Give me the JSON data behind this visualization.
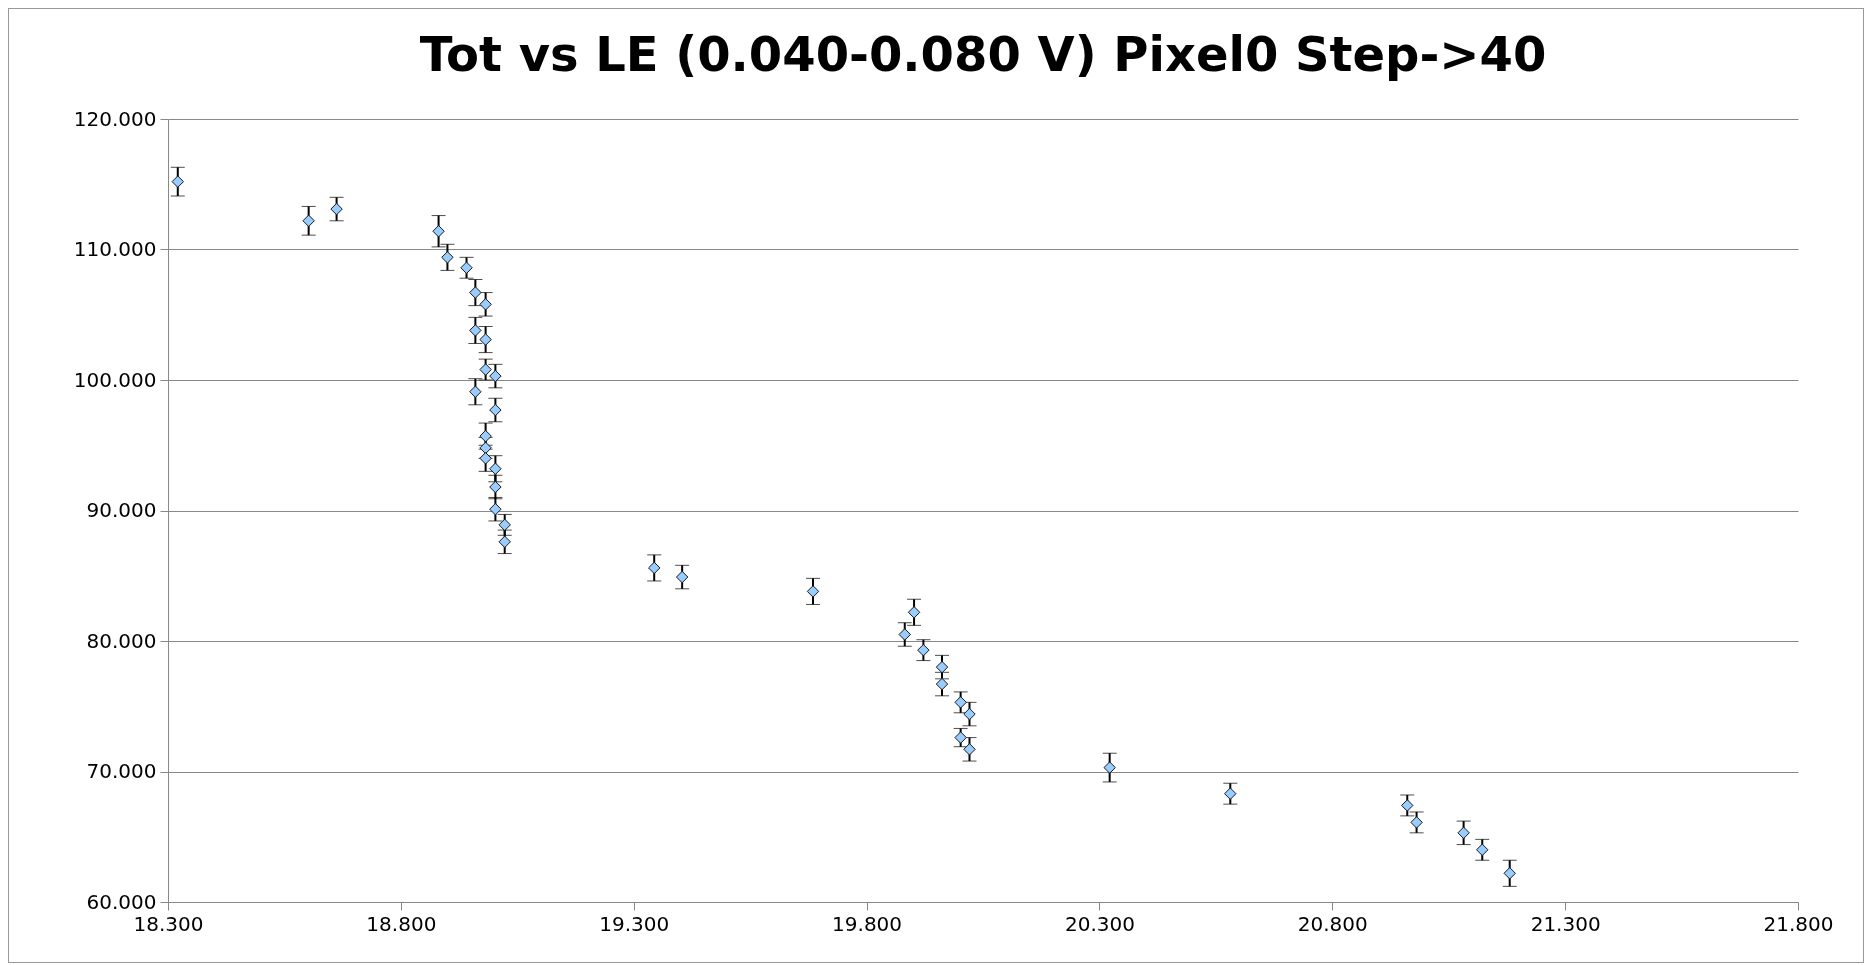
{
  "chart_data": {
    "type": "scatter",
    "title": "Tot vs LE (0.040-0.080 V) Pixel0 Step->40",
    "x": [
      18.321,
      18.602,
      18.662,
      18.881,
      18.9,
      18.941,
      18.96,
      18.96,
      18.96,
      18.982,
      18.982,
      18.982,
      18.982,
      18.982,
      18.982,
      19.003,
      19.003,
      19.003,
      19.003,
      19.003,
      19.023,
      19.023,
      19.344,
      19.404,
      19.685,
      19.882,
      19.902,
      19.922,
      19.962,
      19.962,
      20.002,
      20.002,
      20.021,
      20.021,
      20.322,
      20.581,
      20.961,
      20.981,
      21.082,
      21.122,
      21.181
    ],
    "series": [
      {
        "color": "#99ccff",
        "values": [
          115.2,
          112.2,
          113.1,
          111.4,
          109.4,
          108.6,
          106.7,
          103.8,
          99.1,
          105.8,
          103.1,
          100.8,
          95.7,
          94.8,
          94.0,
          100.3,
          97.7,
          93.2,
          91.8,
          90.1,
          88.9,
          87.6,
          85.6,
          84.9,
          83.8,
          80.5,
          82.2,
          79.3,
          78.0,
          76.7,
          75.3,
          72.6,
          74.4,
          71.7,
          70.3,
          68.3,
          67.4,
          66.1,
          65.3,
          64.0,
          62.2
        ],
        "errors": [
          1.1,
          1.1,
          0.9,
          1.2,
          1.0,
          0.8,
          1.0,
          1.0,
          1.0,
          0.9,
          1.0,
          0.8,
          1.0,
          0.8,
          1.0,
          0.9,
          0.9,
          1.0,
          0.9,
          0.9,
          0.8,
          0.9,
          1.0,
          0.9,
          1.0,
          0.9,
          1.0,
          0.8,
          0.9,
          0.9,
          0.8,
          0.7,
          0.9,
          0.9,
          1.1,
          0.8,
          0.8,
          0.8,
          0.9,
          0.8,
          1.0
        ]
      }
    ],
    "xlim": [
      18.3,
      21.8
    ],
    "xticks": [
      {
        "value": 18.3,
        "label": "18.300"
      },
      {
        "value": 18.8,
        "label": "18.800"
      },
      {
        "value": 19.3,
        "label": "19.300"
      },
      {
        "value": 19.8,
        "label": "19.800"
      },
      {
        "value": 20.3,
        "label": "20.300"
      },
      {
        "value": 20.8,
        "label": "20.800"
      },
      {
        "value": 21.3,
        "label": "21.300"
      },
      {
        "value": 21.8,
        "label": "21.800"
      }
    ],
    "ylim": [
      60,
      120
    ],
    "yticks": [
      {
        "value": 60,
        "label": "60.000"
      },
      {
        "value": 70,
        "label": "70.000"
      },
      {
        "value": 80,
        "label": "80.000"
      },
      {
        "value": 90,
        "label": "90.000"
      },
      {
        "value": 100,
        "label": "100.000"
      },
      {
        "value": 110,
        "label": "110.000"
      },
      {
        "value": 120,
        "label": "120.000"
      }
    ],
    "grid": "y",
    "marker": "diamond"
  }
}
